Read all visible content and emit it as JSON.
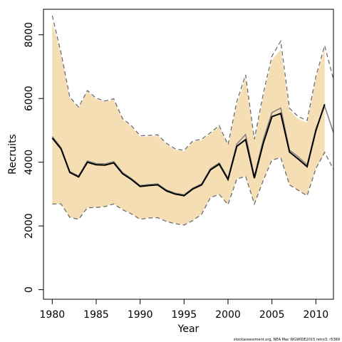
{
  "chart_data": {
    "type": "line",
    "xlabel": "Year",
    "ylabel": "Recruits",
    "footnote": "stockassessment.org, NEA Mac WGWIDE2015 retro3, r5369",
    "xlim": [
      1979,
      2012
    ],
    "ylim": [
      -300,
      8800
    ],
    "xticks": [
      "1980",
      "1985",
      "1990",
      "1995",
      "2000",
      "2005",
      "2010"
    ],
    "yticks": [
      "0",
      "2000",
      "4000",
      "6000",
      "8000"
    ],
    "grid": false,
    "colors": {
      "band": "#f5deb3",
      "estimate": "#000000",
      "reference": "#808080",
      "bounds": "#6e6e6e"
    },
    "series": [
      {
        "role": "confidence-band",
        "x": [
          1980,
          1981,
          1982,
          1983,
          1984,
          1985,
          1986,
          1987,
          1988,
          1989,
          1990,
          1991,
          1992,
          1993,
          1994,
          1995,
          1996,
          1997,
          1998,
          1999,
          2000,
          2001,
          2002,
          2003,
          2004,
          2005,
          2006,
          2007,
          2008,
          2009,
          2010,
          2011
        ],
        "lower": [
          2700,
          2700,
          2280,
          2220,
          2580,
          2590,
          2620,
          2700,
          2520,
          2390,
          2220,
          2260,
          2270,
          2150,
          2080,
          2040,
          2180,
          2380,
          2900,
          3000,
          2680,
          3480,
          3570,
          2700,
          3430,
          4080,
          4150,
          3300,
          3130,
          2960,
          3810,
          4260
        ],
        "upper": [
          8400,
          7400,
          6010,
          5700,
          6220,
          5980,
          5890,
          5960,
          5340,
          5120,
          4800,
          4810,
          4830,
          4560,
          4390,
          4340,
          4640,
          4690,
          4900,
          5120,
          4520,
          5800,
          6640,
          4650,
          6020,
          7200,
          7540,
          5620,
          5360,
          5240,
          6620,
          7560
        ]
      },
      {
        "role": "estimate",
        "x": [
          1980,
          1981,
          1982,
          1983,
          1984,
          1985,
          1986,
          1987,
          1988,
          1989,
          1990,
          1991,
          1992,
          1993,
          1994,
          1995,
          1996,
          1997,
          1998,
          1999,
          2000,
          2001,
          2002,
          2003,
          2004,
          2005,
          2006,
          2007,
          2008,
          2009,
          2010,
          2011
        ],
        "values": [
          4760,
          4420,
          3680,
          3540,
          4000,
          3920,
          3910,
          3980,
          3640,
          3460,
          3240,
          3270,
          3290,
          3100,
          3000,
          2950,
          3160,
          3290,
          3760,
          3940,
          3460,
          4500,
          4710,
          3500,
          4580,
          5430,
          5530,
          4320,
          4100,
          3860,
          4990,
          5820
        ]
      },
      {
        "role": "reference",
        "x": [
          1980,
          1981,
          1982,
          1983,
          1984,
          1985,
          1986,
          1987,
          1988,
          1989,
          1990,
          1991,
          1992,
          1993,
          1994,
          1995,
          1996,
          1997,
          1998,
          1999,
          2000,
          2001,
          2002,
          2003,
          2004,
          2005,
          2006,
          2007,
          2008,
          2009,
          2010,
          2011,
          2012
        ],
        "values": [
          4810,
          4460,
          3710,
          3570,
          4040,
          3960,
          3950,
          4020,
          3680,
          3490,
          3270,
          3300,
          3320,
          3130,
          3030,
          2980,
          3190,
          3320,
          3800,
          3980,
          3500,
          4570,
          4870,
          3560,
          4700,
          5560,
          5700,
          4380,
          4170,
          3920,
          5050,
          5760,
          4930
        ]
      },
      {
        "role": "upper-bound-line",
        "x": [
          1980,
          1981,
          1982,
          1983,
          1984,
          1985,
          1986,
          1987,
          1988,
          1989,
          1990,
          1991,
          1992,
          1993,
          1994,
          1995,
          1996,
          1997,
          1998,
          1999,
          2000,
          2001,
          2002,
          2003,
          2004,
          2005,
          2006,
          2007,
          2008,
          2009,
          2010,
          2011,
          2012
        ],
        "values": [
          8600,
          7430,
          6040,
          5730,
          6250,
          6010,
          5920,
          5990,
          5370,
          5150,
          4830,
          4840,
          4860,
          4590,
          4420,
          4370,
          4670,
          4720,
          4930,
          5150,
          4550,
          5900,
          6740,
          4720,
          6130,
          7330,
          7800,
          5690,
          5430,
          5310,
          6690,
          7660,
          6600
        ]
      },
      {
        "role": "lower-bound-line",
        "x": [
          1980,
          1981,
          1982,
          1983,
          1984,
          1985,
          1986,
          1987,
          1988,
          1989,
          1990,
          1991,
          1992,
          1993,
          1994,
          1995,
          1996,
          1997,
          1998,
          1999,
          2000,
          2001,
          2002,
          2003,
          2004,
          2005,
          2006,
          2007,
          2008,
          2009,
          2010,
          2011,
          2012
        ],
        "values": [
          2690,
          2690,
          2270,
          2210,
          2570,
          2580,
          2610,
          2690,
          2510,
          2380,
          2210,
          2250,
          2260,
          2140,
          2070,
          2030,
          2170,
          2370,
          2890,
          2990,
          2670,
          3470,
          3560,
          2690,
          3420,
          4070,
          4140,
          3290,
          3120,
          2950,
          3800,
          4310,
          3780
        ]
      }
    ]
  }
}
